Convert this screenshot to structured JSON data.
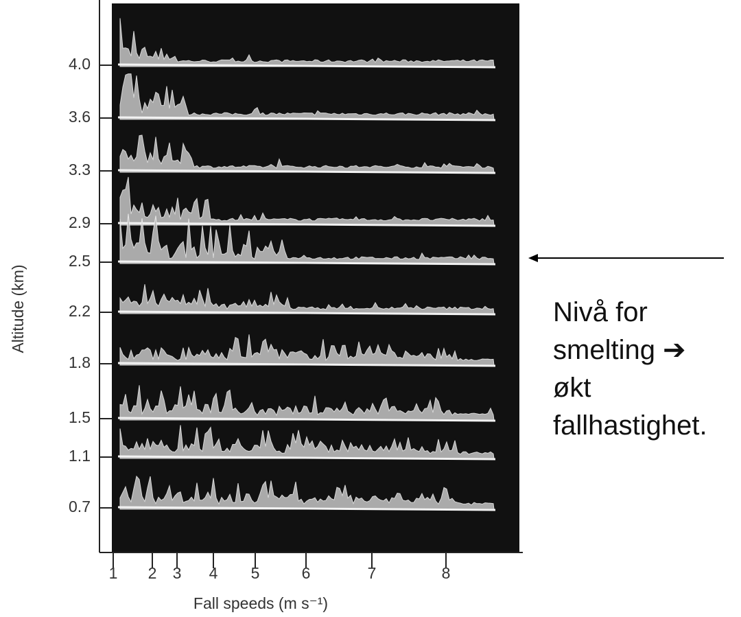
{
  "figure": {
    "y_axis": {
      "label": "Altitude (km)",
      "ticks": [
        "4.0",
        "3.6",
        "3.3",
        "2.9",
        "2.5",
        "2.2",
        "1.8",
        "1.5",
        "1.1",
        "0.7"
      ]
    },
    "x_axis": {
      "label": "Fall speeds (m s⁻¹)",
      "ticks": [
        "1",
        "2",
        "3",
        "4",
        "5",
        "6",
        "7",
        "8"
      ]
    },
    "annotation": {
      "lines": [
        "Nivå for",
        "smelting ➔",
        "økt",
        "fallhastighet."
      ]
    }
  }
}
